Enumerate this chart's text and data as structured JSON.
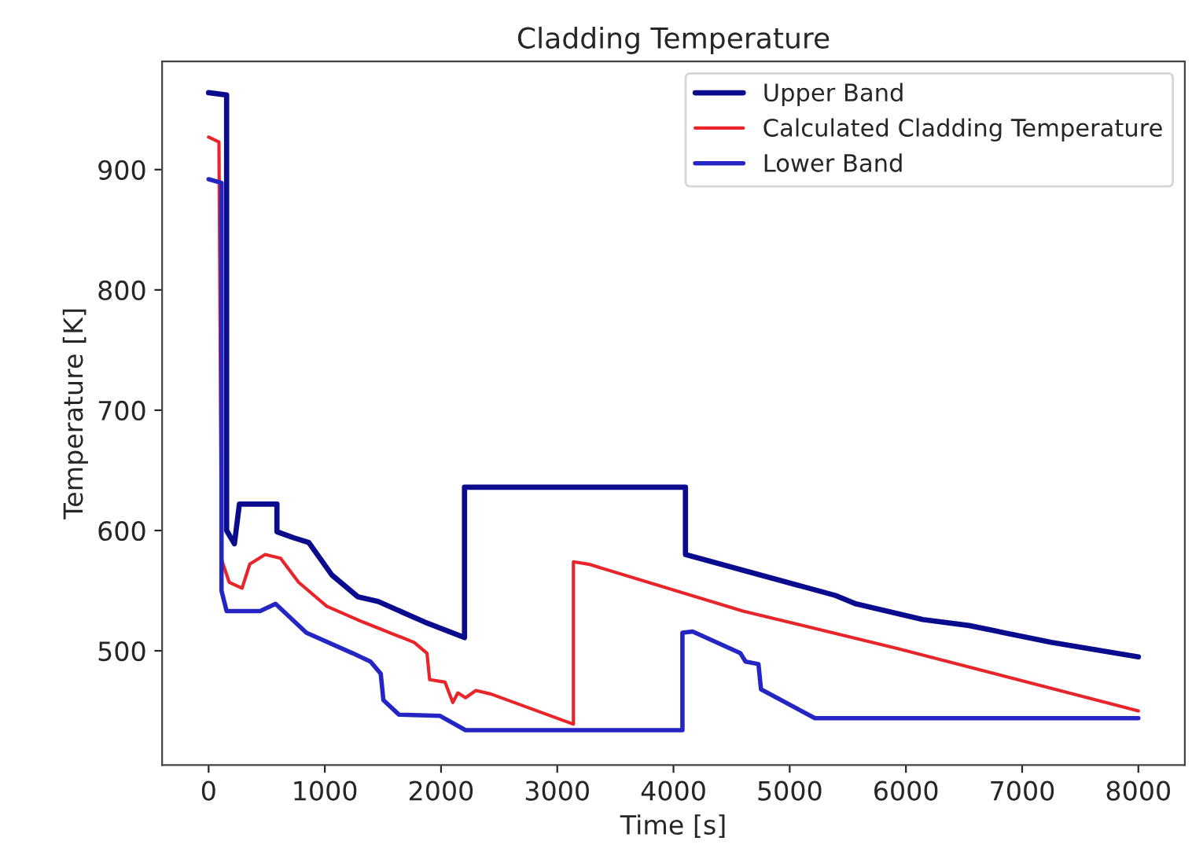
{
  "chart_data": {
    "type": "line",
    "title": "Cladding Temperature",
    "xlabel": "Time [s]",
    "ylabel": "Temperature [K]",
    "xlim": [
      -400,
      8400
    ],
    "ylim": [
      405,
      990
    ],
    "xticks": [
      0,
      1000,
      2000,
      3000,
      4000,
      5000,
      6000,
      7000,
      8000
    ],
    "yticks": [
      500,
      600,
      700,
      800,
      900
    ],
    "grid": false,
    "legend": "top right",
    "marker": "none",
    "line_style": "solid",
    "series": [
      {
        "name": "Upper Band",
        "color": "#0b0b8e",
        "x": [
          0,
          155,
          155,
          222,
          265,
          588,
          588,
          730,
          862,
          1061,
          1283,
          1459,
          1857,
          2202,
          2202,
          4103,
          4103,
          5394,
          5570,
          6146,
          6544,
          7251,
          8000
        ],
        "values": [
          964,
          962,
          600,
          589,
          622,
          622,
          599,
          594,
          590,
          563,
          545,
          541,
          524,
          511,
          636,
          636,
          580,
          546,
          539,
          526,
          521,
          507,
          495
        ]
      },
      {
        "name": "Calculated Cladding Temperature",
        "color": "#e8252a",
        "x": [
          0,
          89,
          111,
          177,
          288,
          354,
          487,
          619,
          774,
          1017,
          1326,
          1769,
          1879,
          1902,
          2034,
          2101,
          2145,
          2211,
          2300,
          2432,
          3139,
          3139,
          3271,
          4598,
          5924,
          8000
        ],
        "values": [
          927,
          923,
          576,
          557,
          552,
          572,
          580,
          577,
          557,
          537,
          524,
          507,
          498,
          476,
          474,
          457,
          465,
          461,
          467,
          464,
          439,
          574,
          572,
          533,
          502,
          450
        ]
      },
      {
        "name": "Lower Band",
        "color": "#2525c4",
        "x": [
          0,
          111,
          111,
          155,
          443,
          576,
          841,
          1239,
          1393,
          1481,
          1504,
          1637,
          1989,
          2211,
          4077,
          4077,
          4165,
          4576,
          4620,
          4731,
          4753,
          5217,
          8000
        ],
        "values": [
          892,
          889,
          550,
          533,
          533,
          539,
          515,
          498,
          491,
          481,
          459,
          447,
          446,
          434,
          434,
          515,
          516,
          498,
          491,
          489,
          468,
          444,
          444
        ]
      }
    ]
  }
}
